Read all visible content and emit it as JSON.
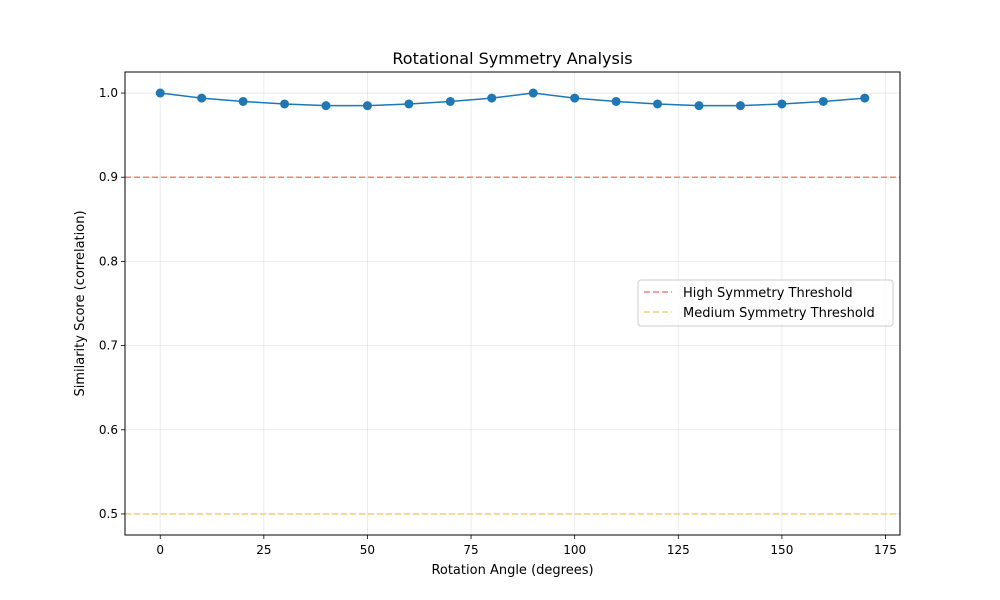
{
  "chart_data": {
    "type": "line",
    "title": "Rotational Symmetry Analysis",
    "xlabel": "Rotation Angle (degrees)",
    "ylabel": "Similarity Score (correlation)",
    "xlim": [
      -8.5,
      178.5
    ],
    "ylim": [
      0.475,
      1.025
    ],
    "xticks": [
      0,
      25,
      50,
      75,
      100,
      125,
      150,
      175
    ],
    "yticks": [
      0.5,
      0.6,
      0.7,
      0.8,
      0.9,
      1.0
    ],
    "xtick_labels": [
      "0",
      "25",
      "50",
      "75",
      "100",
      "125",
      "150",
      "175"
    ],
    "ytick_labels": [
      "0.5",
      "0.6",
      "0.7",
      "0.8",
      "0.9",
      "1.0"
    ],
    "grid": true,
    "legend_position": "center-right",
    "series": [
      {
        "x": [
          0,
          10,
          20,
          30,
          40,
          50,
          60,
          70,
          80,
          90,
          100,
          110,
          120,
          130,
          140,
          150,
          160,
          170
        ],
        "values": [
          1.0,
          0.994,
          0.99,
          0.987,
          0.985,
          0.985,
          0.987,
          0.99,
          0.994,
          1.0,
          0.994,
          0.99,
          0.987,
          0.985,
          0.985,
          0.987,
          0.99,
          0.994
        ],
        "color": "#1f77b4",
        "marker": "circle"
      }
    ],
    "reference_lines": [
      {
        "name": "High Symmetry Threshold",
        "y": 0.9,
        "color": "#f08080",
        "style": "dashed"
      },
      {
        "name": "Medium Symmetry Threshold",
        "y": 0.5,
        "color": "#e6d27a",
        "style": "dashed"
      }
    ]
  }
}
